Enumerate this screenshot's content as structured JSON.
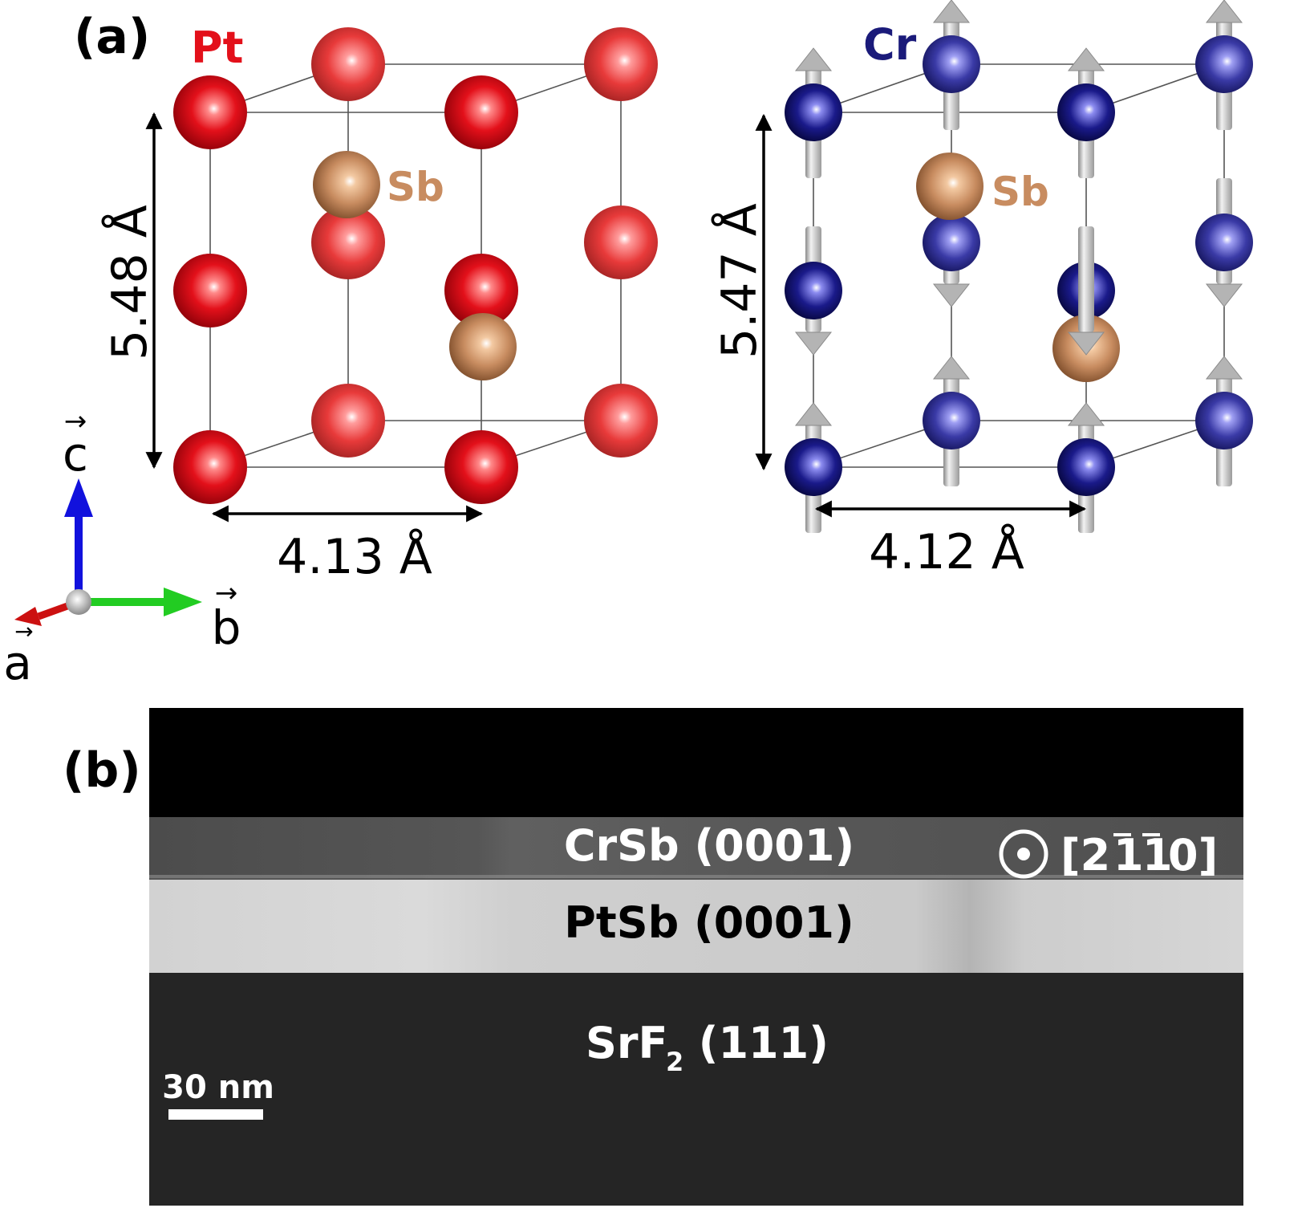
{
  "panel_a": {
    "label": "(a)",
    "pt_label": "Pt",
    "sb_label_left": "Sb",
    "sb_label_right": "Sb",
    "cr_label": "Cr",
    "left_c_dim": "5.48 Å",
    "left_a_dim": "4.13 Å",
    "right_c_dim": "5.47 Å",
    "right_a_dim": "4.12 Å",
    "axis_c": "c",
    "axis_b": "b",
    "axis_a": "a",
    "colors": {
      "pt": "#e3101a",
      "sb": "#c88c60",
      "cr": "#1a1a7a",
      "spin_arrow": "#b4b4b4",
      "axis_c": "#1111dd",
      "axis_b": "#22cc22",
      "axis_a": "#cc1111"
    }
  },
  "panel_b": {
    "label": "(b)",
    "layer_top": "CrSb (0001)",
    "layer_mid": "PtSb (0001)",
    "layer_bot_main": "SrF",
    "layer_bot_sub": "2",
    "layer_bot_rest": " (111)",
    "direction": "[2",
    "direction_1": "1",
    "direction_2": "1",
    "direction_end": "0]",
    "scale_bar": "30 nm"
  }
}
